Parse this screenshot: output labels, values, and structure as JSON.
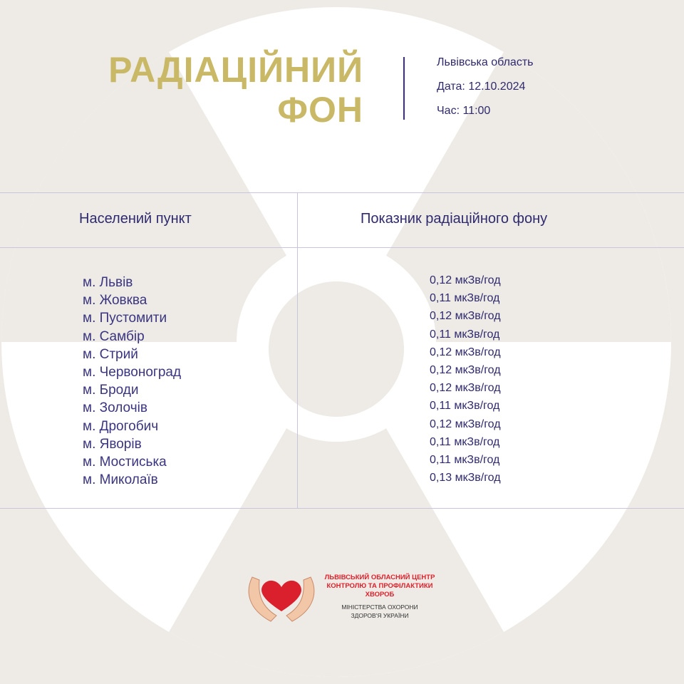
{
  "header": {
    "title_line1": "РАДІАЦІЙНИЙ",
    "title_line2": "ФОН",
    "region": "Львівська область",
    "date": "Дата: 12.10.2024",
    "time": "Час: 11:00"
  },
  "table": {
    "headers": [
      "Населений пункт",
      "Показник радіаційного фону"
    ],
    "rows": [
      {
        "city": "м. Львів",
        "value": "0,12 мкЗв/год"
      },
      {
        "city": "м. Жовква",
        "value": "0,11 мкЗв/год"
      },
      {
        "city": "м. Пустомити",
        "value": "0,12 мкЗв/год"
      },
      {
        "city": "м. Самбір",
        "value": "0,11 мкЗв/год"
      },
      {
        "city": "м. Стрий",
        "value": "0,12 мкЗв/год"
      },
      {
        "city": "м. Червоноград",
        "value": "0,12 мкЗв/год"
      },
      {
        "city": "м. Броди",
        "value": "0,12 мкЗв/год"
      },
      {
        "city": "м. Золочів",
        "value": "0,11 мкЗв/год"
      },
      {
        "city": "м. Дрогобич",
        "value": "0,12 мкЗв/год"
      },
      {
        "city": "м. Яворів",
        "value": "0,11 мкЗв/год"
      },
      {
        "city": "м. Мостиська",
        "value": "0,11 мкЗв/год"
      },
      {
        "city": "м. Миколаїв",
        "value": "0,13 мкЗв/год"
      }
    ]
  },
  "footer": {
    "org_line1": "ЛЬВІВСЬКИЙ ОБЛАСНИЙ ЦЕНТР",
    "org_line2": "КОНТРОЛЮ ТА ПРОФІЛАКТИКИ",
    "org_line3": "ХВОРОБ",
    "ministry_line1": "МІНІСТЕРСТВА ОХОРОНИ",
    "ministry_line2": "ЗДОРОВ'Я УКРАЇНИ"
  },
  "colors": {
    "title": "#c9b866",
    "text": "#2f2a6e",
    "background_symbol": "#eeebe6",
    "org_red": "#e0202b"
  },
  "icons": {
    "background": "radiation-trefoil-icon",
    "logo": "heart-in-hands-icon"
  }
}
